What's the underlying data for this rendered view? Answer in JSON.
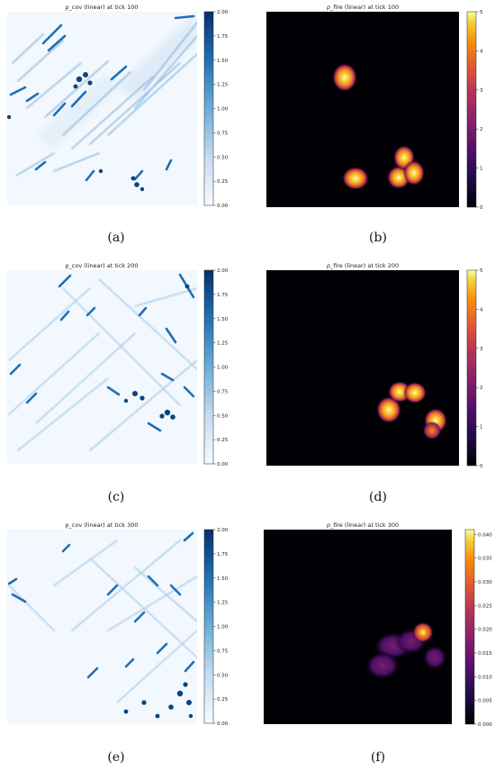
{
  "chart_data": [
    {
      "type": "heatmap",
      "panel": "a",
      "title": "ρ_cov (linear) at tick 100",
      "caption": "(a)",
      "colormap": "Blues",
      "colorbar_ticks": [
        "0.00",
        "0.25",
        "0.50",
        "0.75",
        "1.00",
        "1.25",
        "1.50",
        "1.75",
        "2.00"
      ],
      "vmin": 0,
      "vmax": 2
    },
    {
      "type": "heatmap",
      "panel": "b",
      "title": "ρ_fire (linear) at tick 100",
      "caption": "(b)",
      "colormap": "inferno",
      "colorbar_ticks": [
        "0",
        "1",
        "2",
        "3",
        "4",
        "5"
      ],
      "vmin": 0,
      "vmax": 5
    },
    {
      "type": "heatmap",
      "panel": "c",
      "title": "ρ_cov (linear) at tick 200",
      "caption": "(c)",
      "colormap": "Blues",
      "colorbar_ticks": [
        "0.00",
        "0.25",
        "0.50",
        "0.75",
        "1.00",
        "1.25",
        "1.50",
        "1.75",
        "2.00"
      ],
      "vmin": 0,
      "vmax": 2
    },
    {
      "type": "heatmap",
      "panel": "d",
      "title": "ρ_fire (linear) at tick 200",
      "caption": "(d)",
      "colormap": "inferno",
      "colorbar_ticks": [
        "0",
        "1",
        "2",
        "3",
        "4",
        "5"
      ],
      "vmin": 0,
      "vmax": 5
    },
    {
      "type": "heatmap",
      "panel": "e",
      "title": "ρ_cov (linear) at tick 300",
      "caption": "(e)",
      "colormap": "Blues",
      "colorbar_ticks": [
        "0.00",
        "0.25",
        "0.50",
        "0.75",
        "1.00",
        "1.25",
        "1.50",
        "1.75",
        "2.00"
      ],
      "vmin": 0,
      "vmax": 2
    },
    {
      "type": "heatmap",
      "panel": "f",
      "title": "ρ_fire (linear) at tick 300",
      "caption": "(f)",
      "colormap": "inferno",
      "colorbar_ticks": [
        "0.000",
        "0.005",
        "0.010",
        "0.015",
        "0.020",
        "0.025",
        "0.030",
        "0.035",
        "0.040"
      ],
      "vmin": 0,
      "vmax": 0.041
    }
  ]
}
